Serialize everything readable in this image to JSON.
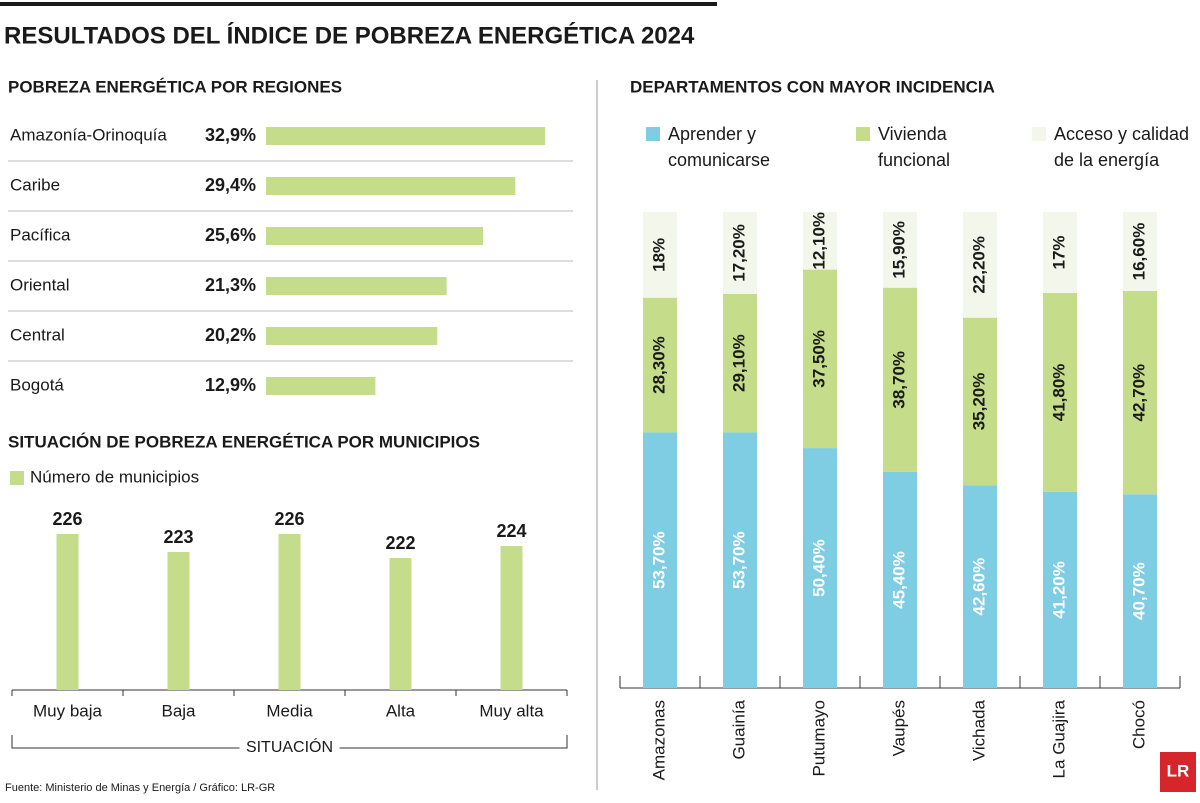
{
  "title": "RESULTADOS DEL ÍNDICE DE POBREZA ENERGÉTICA 2024",
  "source": "Fuente: Ministerio de Minas y Energía / Gráfico: LR-GR",
  "logo": "LR",
  "chart_data": [
    {
      "type": "hbar",
      "title": "POBREZA ENERGÉTICA POR REGIONES",
      "categories": [
        "Amazonía-Orinoquía",
        "Caribe",
        "Pacífica",
        "Oriental",
        "Central",
        "Bogotá"
      ],
      "values": [
        32.9,
        29.4,
        25.6,
        21.3,
        20.2,
        12.9
      ],
      "value_labels": [
        "32,9%",
        "29,4%",
        "25,6%",
        "21,3%",
        "20,2%",
        "12,9%"
      ],
      "color": "#c5dc8a"
    },
    {
      "type": "bar",
      "title": "SITUACIÓN DE POBREZA ENERGÉTICA POR MUNICIPIOS",
      "xlabel": "SITUACIÓN",
      "categories": [
        "Muy baja",
        "Baja",
        "Media",
        "Alta",
        "Muy alta"
      ],
      "series": [
        {
          "name": "Número de municipios",
          "color": "#c5dc8a",
          "values": [
            226,
            223,
            226,
            222,
            224
          ]
        }
      ],
      "ylim": [
        200,
        230
      ]
    },
    {
      "type": "stacked_bar",
      "title": "DEPARTAMENTOS CON MAYOR INCIDENCIA",
      "categories": [
        "Amazonas",
        "Guainía",
        "Putumayo",
        "Vaupés",
        "Vichada",
        "La Guajira",
        "Chocó"
      ],
      "series": [
        {
          "name": "Aprender y comunicarse",
          "color": "#7ecde3",
          "values": [
            53.7,
            53.7,
            50.4,
            45.4,
            42.6,
            41.2,
            40.7
          ],
          "value_labels": [
            "53,70%",
            "53,70%",
            "50,40%",
            "45,40%",
            "42,60%",
            "41,20%",
            "40,70%"
          ]
        },
        {
          "name": "Vivienda funcional",
          "color": "#c5dc8a",
          "values": [
            28.3,
            29.1,
            37.5,
            38.7,
            35.2,
            41.8,
            42.7
          ],
          "value_labels": [
            "28,30%",
            "29,10%",
            "37,50%",
            "38,70%",
            "35,20%",
            "41,80%",
            "42,70%"
          ]
        },
        {
          "name": "Acceso y calidad de la energía",
          "color": "#f3f6ea",
          "values": [
            18,
            17.2,
            12.1,
            15.9,
            22.2,
            17,
            16.6
          ],
          "value_labels": [
            "18%",
            "17,20%",
            "12,10%",
            "15,90%",
            "22,20%",
            "17%",
            "16,60%"
          ]
        }
      ],
      "ylim": [
        0,
        100
      ]
    }
  ]
}
